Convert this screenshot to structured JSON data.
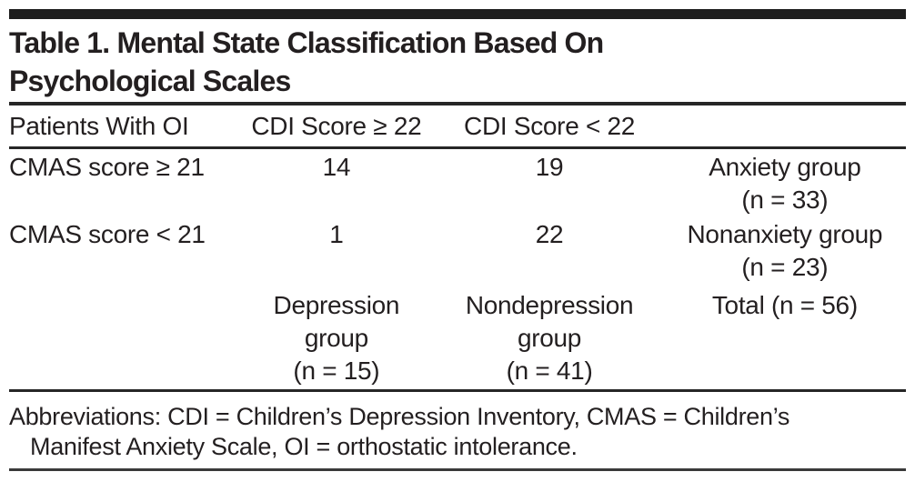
{
  "title": {
    "line1": "Table 1. Mental State Classification Based On",
    "line2": "Psychological Scales"
  },
  "table": {
    "header": {
      "col1": "Patients With OI",
      "col2": "CDI Score ≥ 22",
      "col3": "CDI Score < 22",
      "col4": ""
    },
    "rows": [
      {
        "col1": "CMAS score ≥ 21",
        "col2": "14",
        "col3": "19",
        "col4": "Anxiety group\n(n = 33)"
      },
      {
        "col1": "CMAS score < 21",
        "col2": "1",
        "col3": "22",
        "col4": "Nonanxiety group\n(n = 23)"
      },
      {
        "col1": "",
        "col2": "Depression\ngroup\n(n = 15)",
        "col3": "Nondepression\ngroup\n(n = 41)",
        "col4": "Total (n = 56)"
      }
    ]
  },
  "footnote": {
    "line1": "Abbreviations: CDI = Children’s Depression Inventory, CMAS = Children’s",
    "line2": "Manifest Anxiety Scale, OI = orthostatic intolerance."
  },
  "colors": {
    "text": "#231f20",
    "rule": "#262626",
    "top_bar": "#1d1d1d",
    "background": "#ffffff"
  }
}
